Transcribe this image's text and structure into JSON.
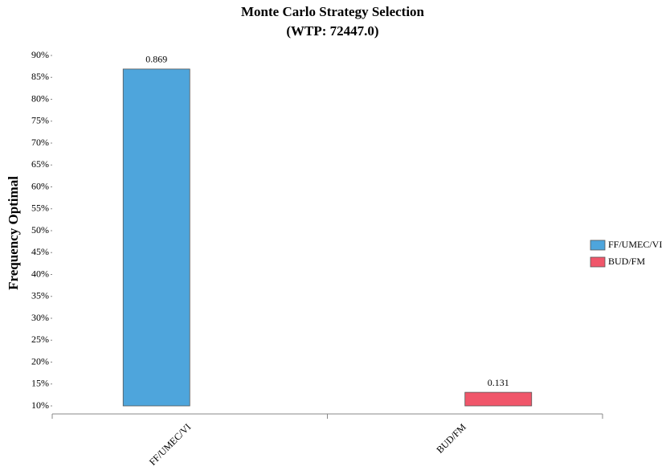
{
  "chart_data": {
    "type": "bar",
    "title": "Monte Carlo Strategy Selection",
    "subtitle": "(WTP: 72447.0)",
    "y_label": "Frequency Optimal",
    "categories": [
      "FF/UMEC/VI",
      "BUD/FM"
    ],
    "series": [
      {
        "name": "FF/UMEC/VI",
        "color": "#4ea5dc",
        "values": [
          86.9,
          null
        ],
        "value_labels": [
          "0.869",
          null
        ]
      },
      {
        "name": "BUD/FM",
        "color": "#f0566a",
        "values": [
          null,
          13.1
        ],
        "value_labels": [
          null,
          "0.131"
        ]
      }
    ],
    "ylim": [
      10,
      90
    ],
    "yticks": [
      {
        "value": 10,
        "label": "10%"
      },
      {
        "value": 15,
        "label": "15%"
      },
      {
        "value": 20,
        "label": "20%"
      },
      {
        "value": 25,
        "label": "25%"
      },
      {
        "value": 30,
        "label": "30%"
      },
      {
        "value": 35,
        "label": "35%"
      },
      {
        "value": 40,
        "label": "40%"
      },
      {
        "value": 45,
        "label": "45%"
      },
      {
        "value": 50,
        "label": "50%"
      },
      {
        "value": 55,
        "label": "55%"
      },
      {
        "value": 60,
        "label": "60%"
      },
      {
        "value": 65,
        "label": "65%"
      },
      {
        "value": 70,
        "label": "70%"
      },
      {
        "value": 75,
        "label": "75%"
      },
      {
        "value": 80,
        "label": "80%"
      },
      {
        "value": 85,
        "label": "85%"
      },
      {
        "value": 90,
        "label": "90%"
      }
    ],
    "legend": "right"
  }
}
